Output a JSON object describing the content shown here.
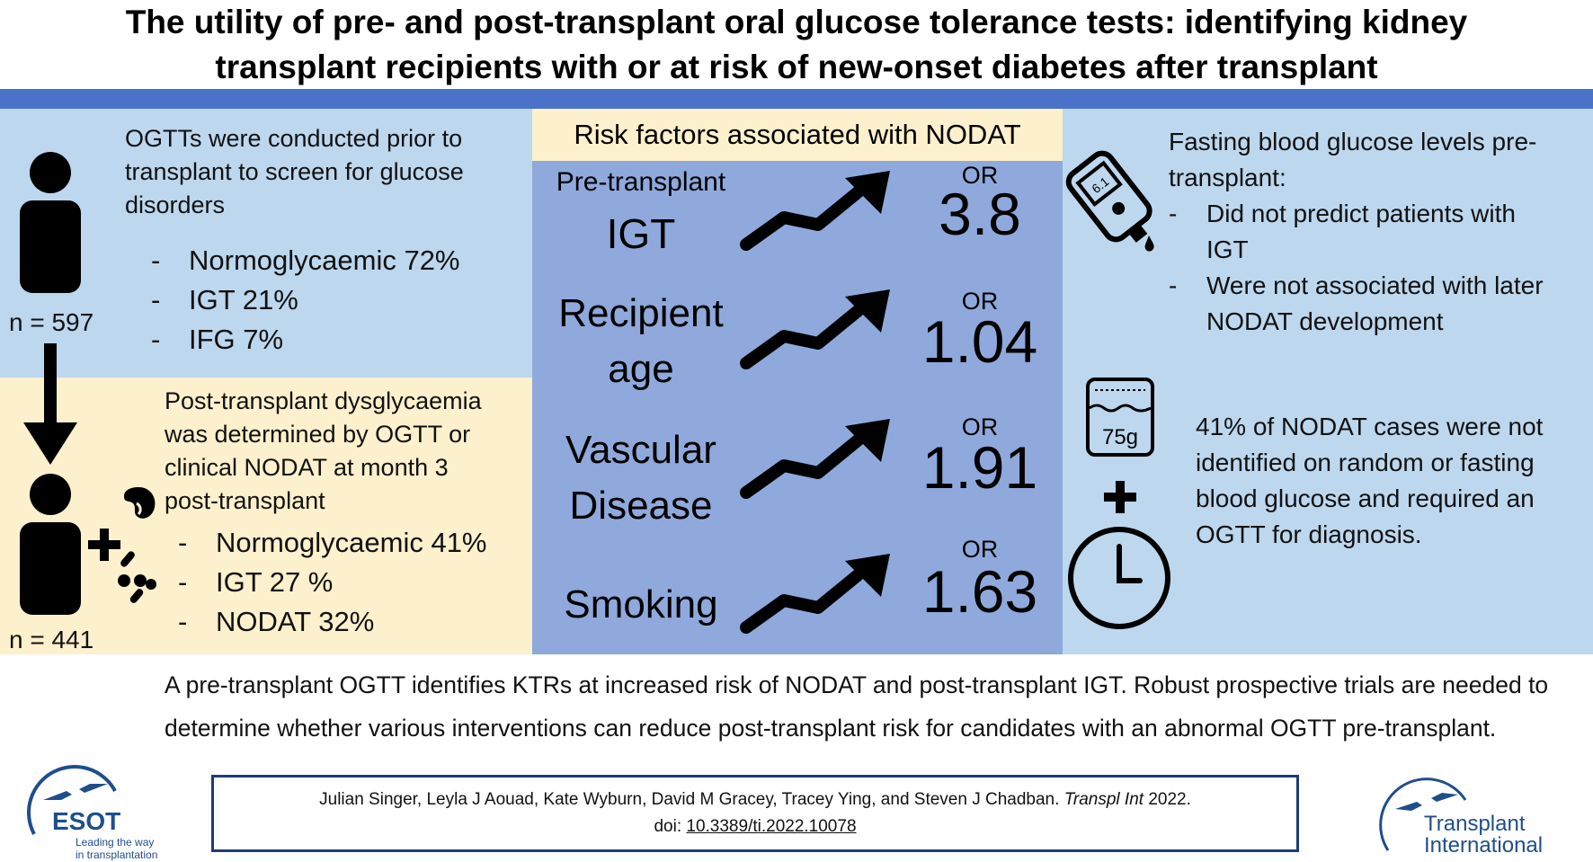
{
  "title": {
    "line1": "The utility of pre- and post-transplant oral glucose tolerance tests: identifying kidney",
    "line2": "transplant recipients with or at risk of new-onset diabetes after transplant"
  },
  "left_top": {
    "text": [
      "OGTTs were conducted prior to",
      "transplant to screen for glucose",
      "disorders"
    ],
    "items": [
      "Normoglycaemic 72%",
      "IGT 21%",
      "IFG 7%"
    ],
    "n": "n = 597"
  },
  "left_bottom": {
    "text": [
      "Post-transplant dysglycaemia",
      "was determined by OGTT or",
      "clinical NODAT at month 3",
      "post-transplant"
    ],
    "items": [
      "Normoglycaemic 41%",
      "IGT 27 %",
      "NODAT 32%"
    ],
    "n": "n = 441"
  },
  "middle": {
    "header": "Risk factors associated with NODAT",
    "or_label": "OR",
    "factors": [
      {
        "lines": [
          "Pre-transplant",
          "IGT"
        ],
        "or": "3.8"
      },
      {
        "lines": [
          "Recipient",
          "age"
        ],
        "or": "1.04"
      },
      {
        "lines": [
          "Vascular",
          "Disease"
        ],
        "or": "1.91"
      },
      {
        "lines": [
          "Smoking"
        ],
        "or": "1.63"
      }
    ]
  },
  "right": {
    "fasting_text": [
      "Fasting blood glucose levels pre-",
      "transplant:"
    ],
    "fasting_items": [
      [
        "Did not predict patients with",
        "IGT"
      ],
      [
        "Were not associated with later",
        "NODAT development"
      ]
    ],
    "meter_reading": "6.1",
    "glucose_label": "75g",
    "nodat_text": [
      "41% of NODAT cases were not",
      "identified on random or fasting",
      "blood glucose and required an",
      "OGTT for diagnosis."
    ]
  },
  "summary": [
    "A pre-transplant OGTT identifies KTRs at increased risk of NODAT and post-transplant IGT. Robust prospective trials are needed to",
    "determine whether various interventions can reduce post-transplant risk for candidates with an abnormal OGTT pre-transplant."
  ],
  "citation": {
    "authors": "Julian Singer, Leyla J Aouad, Kate Wyburn, David M Gracey, Tracey Ying, and Steven J Chadban. ",
    "journal": "Transpl Int",
    "year": " 2022.",
    "doi_prefix": "doi: ",
    "doi": "10.3389/ti.2022.10078"
  },
  "logos": {
    "esot": {
      "name": "ESOT",
      "tagline1": "Leading the way",
      "tagline2": "in transplantation"
    },
    "ti": {
      "line1": "Transplant",
      "line2": "International"
    }
  },
  "colors": {
    "banner": "#4a72c8",
    "light_blue": "#bdd7ee",
    "cream": "#fdf0cc",
    "mid_blue": "#8fa9dc",
    "logo_blue": "#1f4e8c"
  }
}
